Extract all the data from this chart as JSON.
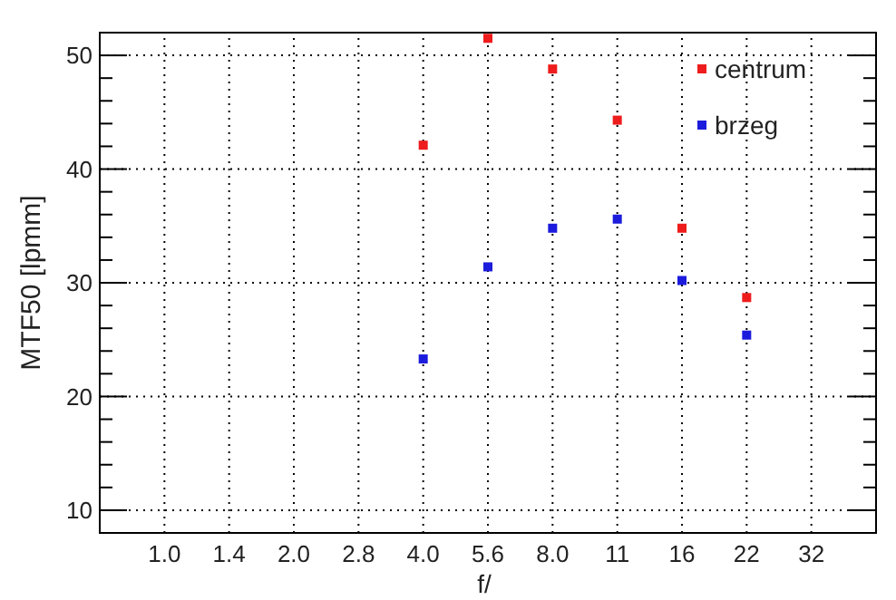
{
  "chart_data": {
    "type": "scatter",
    "xlabel": "f/",
    "ylabel": "MTF50 [lpmm]",
    "categories": [
      "1.0",
      "1.4",
      "2.0",
      "2.8",
      "4.0",
      "5.6",
      "8.0",
      "11",
      "16",
      "22",
      "32"
    ],
    "series": [
      {
        "name": "centrum",
        "color": "#ee1c1c",
        "values": [
          null,
          null,
          null,
          null,
          42.1,
          51.5,
          48.8,
          44.3,
          34.8,
          28.7,
          null
        ]
      },
      {
        "name": "brzeg",
        "color": "#1c1cdd",
        "values": [
          null,
          null,
          null,
          null,
          23.3,
          31.4,
          34.8,
          35.6,
          30.2,
          25.4,
          null
        ]
      }
    ],
    "ylim": [
      8,
      52
    ],
    "yticks": [
      10,
      {
        "value": 12,
        "label": null
      },
      {
        "value": 14,
        "label": null
      },
      {
        "value": 16,
        "label": null
      },
      {
        "value": 18,
        "label": null
      },
      20,
      {
        "value": 22,
        "label": null
      },
      {
        "value": 24,
        "label": null
      },
      {
        "value": 26,
        "label": null
      },
      {
        "value": 28,
        "label": null
      },
      30,
      {
        "value": 32,
        "label": null
      },
      {
        "value": 34,
        "label": null
      },
      {
        "value": 36,
        "label": null
      },
      {
        "value": 38,
        "label": null
      },
      40,
      {
        "value": 42,
        "label": null
      },
      {
        "value": 44,
        "label": null
      },
      {
        "value": 46,
        "label": null
      },
      {
        "value": 48,
        "label": null
      },
      50
    ],
    "grid": true,
    "legend": "top right",
    "marker": "square"
  }
}
